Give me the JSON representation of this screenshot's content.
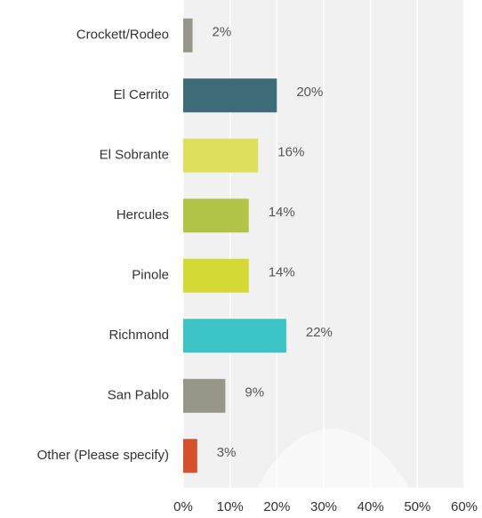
{
  "chart_data": {
    "type": "hbar",
    "categories": [
      "Crockett/Rodeo",
      "El Cerrito",
      "El Sobrante",
      "Hercules",
      "Pinole",
      "Richmond",
      "San Pablo",
      "Other (Please specify)"
    ],
    "values": [
      2,
      20,
      16,
      14,
      14,
      22,
      9,
      3
    ],
    "value_labels": [
      "2%",
      "20%",
      "16%",
      "14%",
      "14%",
      "22%",
      "9%",
      "3%"
    ],
    "colors": [
      "#95958a",
      "#3d6b78",
      "#dde05c",
      "#b3c347",
      "#d5d935",
      "#3cc3c6",
      "#979688",
      "#d4512a"
    ],
    "xlim": [
      0,
      60
    ],
    "xticks": [
      {
        "value": 0,
        "label": "0%"
      },
      {
        "value": 10,
        "label": "10%"
      },
      {
        "value": 20,
        "label": "20%"
      },
      {
        "value": 30,
        "label": "30%"
      },
      {
        "value": 40,
        "label": "40%"
      },
      {
        "value": 50,
        "label": "50%"
      },
      {
        "value": 60,
        "label": "60%"
      }
    ],
    "grid": true
  }
}
